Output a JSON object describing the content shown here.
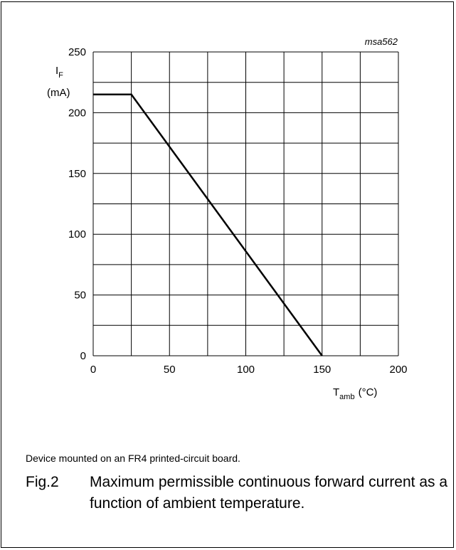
{
  "chart_data": {
    "type": "line",
    "figure_id": "msa562",
    "ylabel_main": "I",
    "ylabel_sub": "F",
    "ylabel_unit": "(mA)",
    "xlabel_main": "T",
    "xlabel_sub": "amb",
    "xlabel_unit": "(°C)",
    "xlim": [
      0,
      200
    ],
    "ylim": [
      0,
      250
    ],
    "xticks": [
      0,
      50,
      100,
      150,
      200
    ],
    "yticks": [
      0,
      50,
      100,
      150,
      200,
      250
    ],
    "x_gridlines": [
      0,
      25,
      50,
      75,
      100,
      125,
      150,
      175,
      200
    ],
    "y_gridlines": [
      0,
      25,
      50,
      75,
      100,
      125,
      150,
      175,
      200,
      225,
      250
    ],
    "grid": true,
    "series": [
      {
        "x": [
          0,
          25,
          150
        ],
        "y": [
          215,
          215,
          0
        ]
      }
    ]
  },
  "note": "Device mounted on an FR4 printed-circuit board.",
  "caption": {
    "label": "Fig.2",
    "text": "Maximum permissible continuous forward current as a function of ambient temperature."
  }
}
